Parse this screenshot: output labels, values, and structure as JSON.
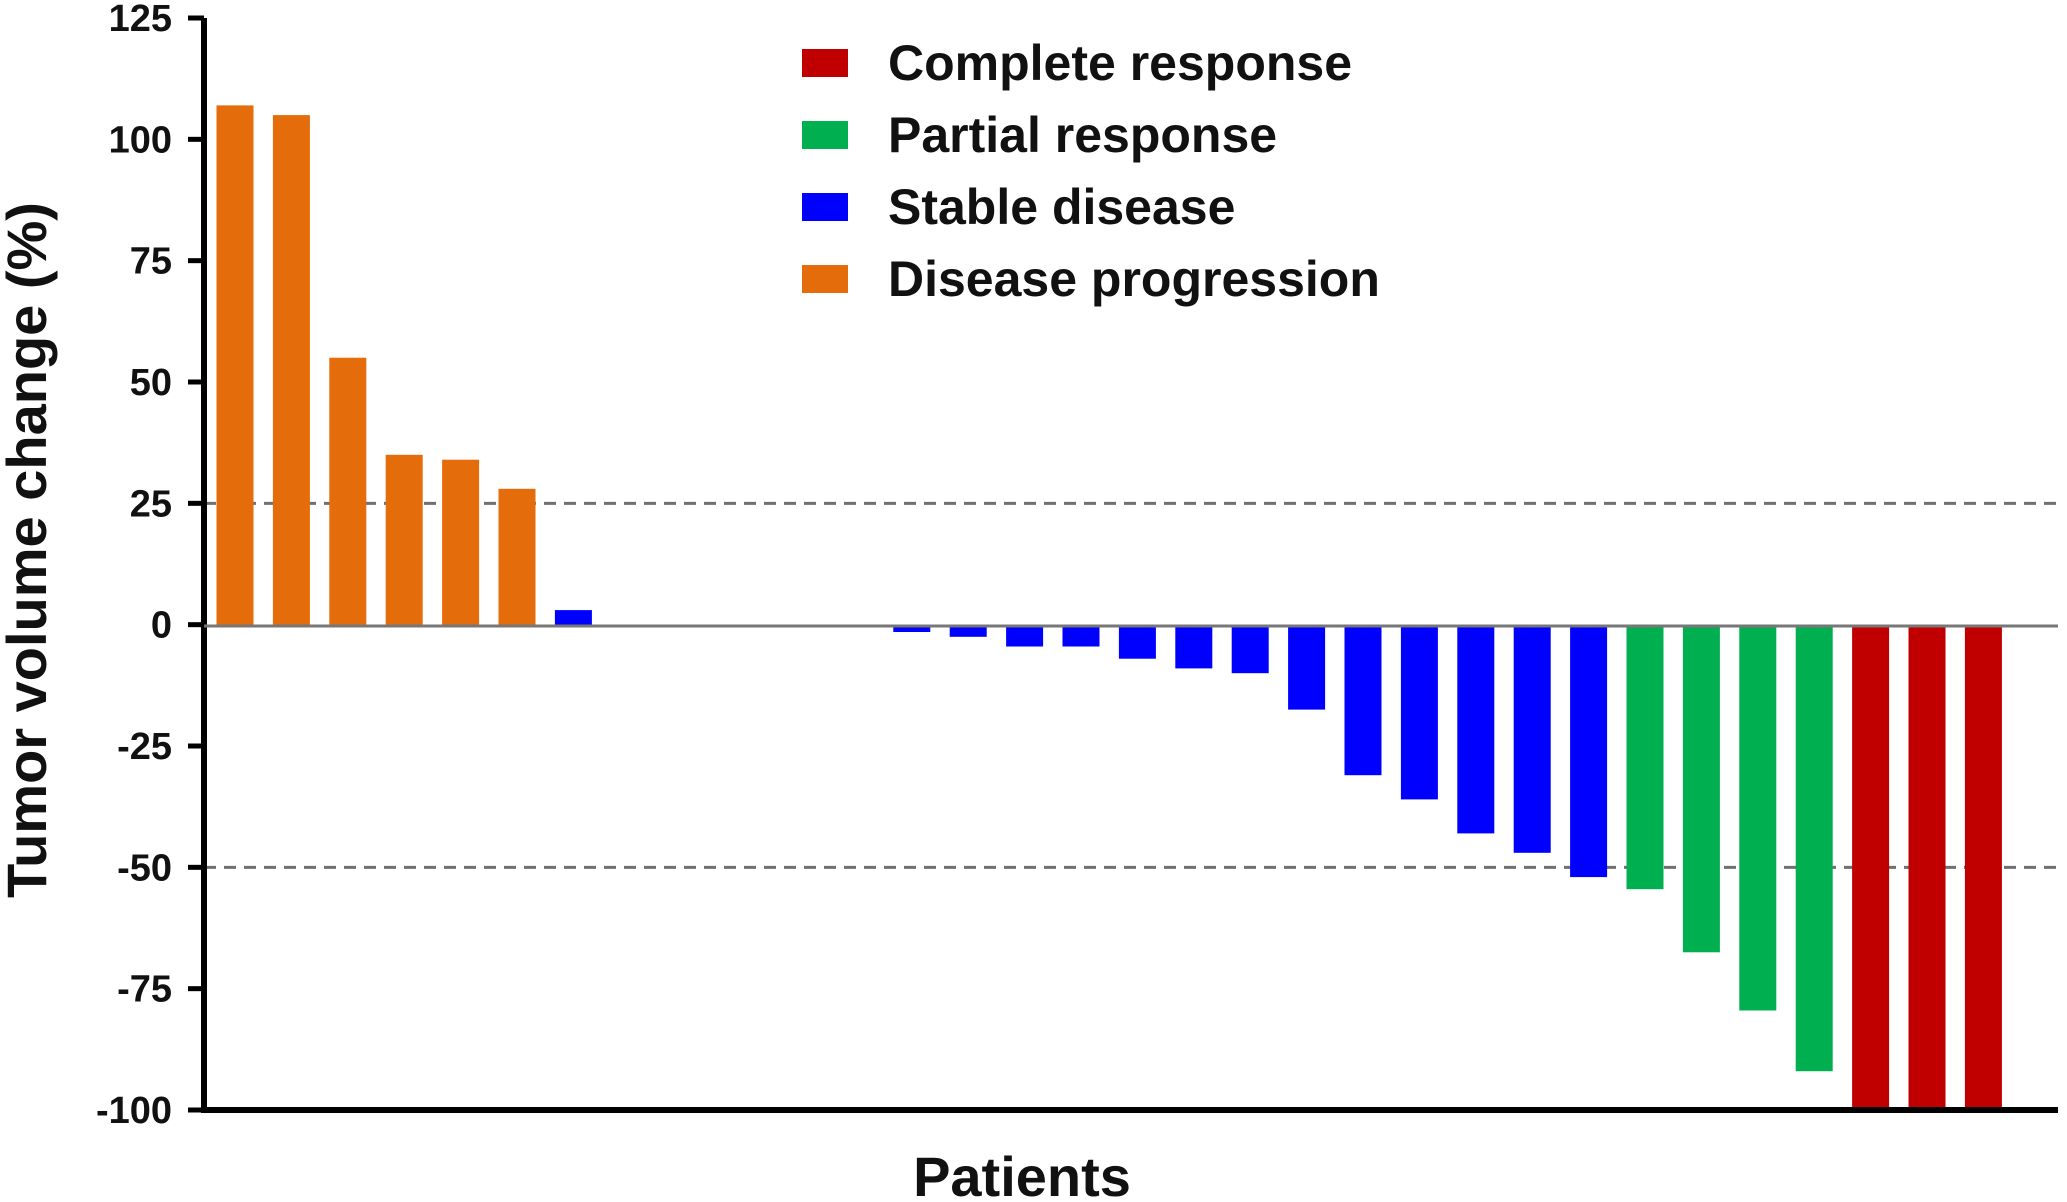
{
  "chart_data": {
    "type": "bar",
    "title": "",
    "xlabel": "Patients",
    "ylabel": "Tumor volume change (%)",
    "ylim": [
      -100,
      125
    ],
    "yticks": [
      "125",
      "100",
      "75",
      "50",
      "25",
      "0",
      "-25",
      "-50",
      "-75",
      "-100"
    ],
    "reference_lines": [
      25,
      -50
    ],
    "colors": {
      "Complete response": "#c00000",
      "Partial response": "#00b050",
      "Stable disease": "#0000ff",
      "Disease progression": "#e46c0a"
    },
    "legend": [
      "Complete response",
      "Partial response",
      "Stable disease",
      "Disease progression"
    ],
    "bars": [
      {
        "value": 107,
        "category": "Disease progression"
      },
      {
        "value": 105,
        "category": "Disease progression"
      },
      {
        "value": 55,
        "category": "Disease progression"
      },
      {
        "value": 35,
        "category": "Disease progression"
      },
      {
        "value": 34,
        "category": "Disease progression"
      },
      {
        "value": 28,
        "category": "Disease progression"
      },
      {
        "value": 3,
        "category": "Stable disease"
      },
      {
        "value": 0,
        "category": "Stable disease"
      },
      {
        "value": 0,
        "category": "Stable disease"
      },
      {
        "value": 0,
        "category": "Stable disease"
      },
      {
        "value": 0,
        "category": "Stable disease"
      },
      {
        "value": 0,
        "category": "Stable disease"
      },
      {
        "value": -1.5,
        "category": "Stable disease"
      },
      {
        "value": -2.5,
        "category": "Stable disease"
      },
      {
        "value": -4.5,
        "category": "Stable disease"
      },
      {
        "value": -4.5,
        "category": "Stable disease"
      },
      {
        "value": -7,
        "category": "Stable disease"
      },
      {
        "value": -9,
        "category": "Stable disease"
      },
      {
        "value": -10,
        "category": "Stable disease"
      },
      {
        "value": -17.5,
        "category": "Stable disease"
      },
      {
        "value": -31,
        "category": "Stable disease"
      },
      {
        "value": -36,
        "category": "Stable disease"
      },
      {
        "value": -43,
        "category": "Stable disease"
      },
      {
        "value": -47,
        "category": "Stable disease"
      },
      {
        "value": -52,
        "category": "Stable disease"
      },
      {
        "value": -54.5,
        "category": "Partial response"
      },
      {
        "value": -67.5,
        "category": "Partial response"
      },
      {
        "value": -79.5,
        "category": "Partial response"
      },
      {
        "value": -92,
        "category": "Partial response"
      },
      {
        "value": -100,
        "category": "Complete response"
      },
      {
        "value": -100,
        "category": "Complete response"
      },
      {
        "value": -100,
        "category": "Complete response"
      }
    ]
  }
}
